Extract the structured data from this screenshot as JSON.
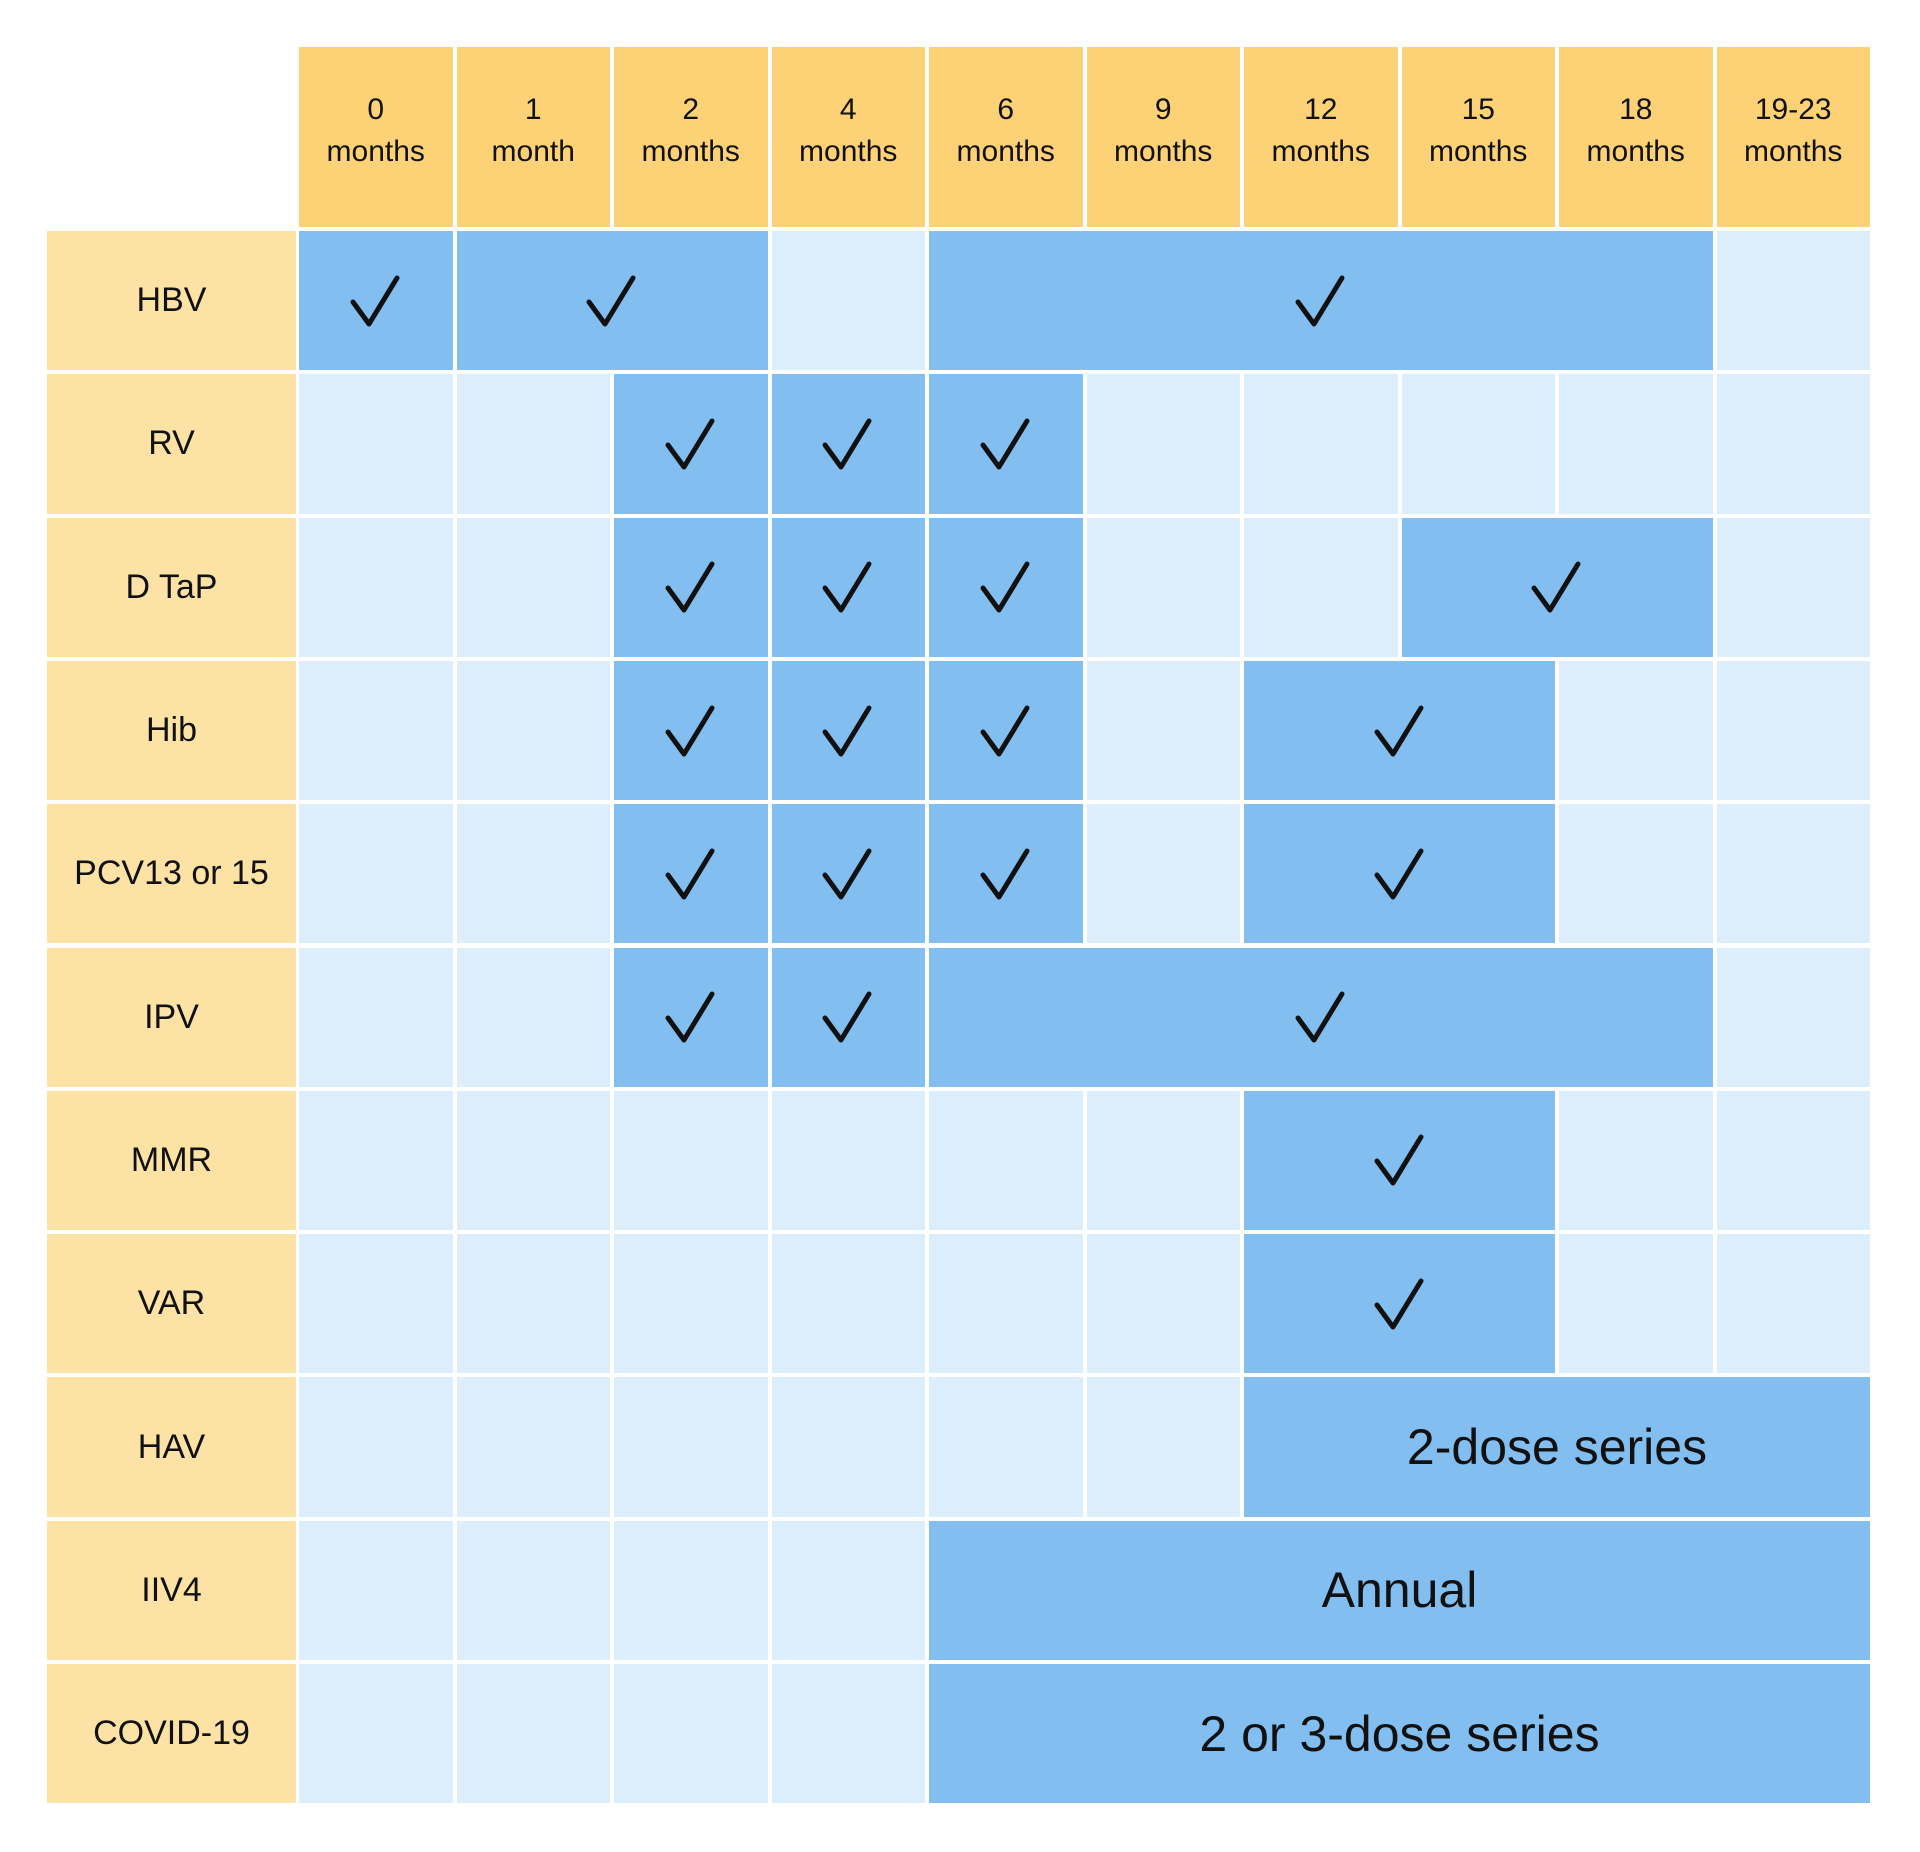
{
  "chart_data": {
    "type": "table",
    "title": "",
    "columns": [
      "0 months",
      "1 month",
      "2 months",
      "4 months",
      "6 months",
      "9 months",
      "12 months",
      "15 months",
      "18 months",
      "19-23 months"
    ],
    "rows": [
      {
        "vaccine": "HBV",
        "doses": [
          {
            "start": 0,
            "end": 0,
            "label": "✓"
          },
          {
            "start": 1,
            "end": 2,
            "label": "✓"
          },
          {
            "start": 4,
            "end": 8,
            "label": "✓"
          }
        ]
      },
      {
        "vaccine": "RV",
        "doses": [
          {
            "start": 2,
            "end": 2,
            "label": "✓"
          },
          {
            "start": 3,
            "end": 3,
            "label": "✓"
          },
          {
            "start": 4,
            "end": 4,
            "label": "✓"
          }
        ]
      },
      {
        "vaccine": "D TaP",
        "doses": [
          {
            "start": 2,
            "end": 2,
            "label": "✓"
          },
          {
            "start": 3,
            "end": 3,
            "label": "✓"
          },
          {
            "start": 4,
            "end": 4,
            "label": "✓"
          },
          {
            "start": 7,
            "end": 8,
            "label": "✓"
          }
        ]
      },
      {
        "vaccine": "Hib",
        "doses": [
          {
            "start": 2,
            "end": 2,
            "label": "✓"
          },
          {
            "start": 3,
            "end": 3,
            "label": "✓"
          },
          {
            "start": 4,
            "end": 4,
            "label": "✓"
          },
          {
            "start": 6,
            "end": 7,
            "label": "✓"
          }
        ]
      },
      {
        "vaccine": "PCV13 or 15",
        "doses": [
          {
            "start": 2,
            "end": 2,
            "label": "✓"
          },
          {
            "start": 3,
            "end": 3,
            "label": "✓"
          },
          {
            "start": 4,
            "end": 4,
            "label": "✓"
          },
          {
            "start": 6,
            "end": 7,
            "label": "✓"
          }
        ]
      },
      {
        "vaccine": "IPV",
        "doses": [
          {
            "start": 2,
            "end": 2,
            "label": "✓"
          },
          {
            "start": 3,
            "end": 3,
            "label": "✓"
          },
          {
            "start": 4,
            "end": 8,
            "label": "✓"
          }
        ]
      },
      {
        "vaccine": "MMR",
        "doses": [
          {
            "start": 6,
            "end": 7,
            "label": "✓"
          }
        ]
      },
      {
        "vaccine": "VAR",
        "doses": [
          {
            "start": 6,
            "end": 7,
            "label": "✓"
          }
        ]
      },
      {
        "vaccine": "HAV",
        "doses": [
          {
            "start": 6,
            "end": 9,
            "label": "2-dose series"
          }
        ]
      },
      {
        "vaccine": "IIV4",
        "doses": [
          {
            "start": 4,
            "end": 9,
            "label": "Annual"
          }
        ]
      },
      {
        "vaccine": "COVID-19",
        "doses": [
          {
            "start": 4,
            "end": 9,
            "label": "2 or 3-dose series"
          }
        ]
      }
    ],
    "colors": {
      "header": "#fdd276",
      "row_label": "#fde2a6",
      "empty": "#dcedfc",
      "dose": "#82bff0"
    }
  },
  "header": {
    "columns": [
      {
        "num": "0",
        "unit": "months"
      },
      {
        "num": "1",
        "unit": "month"
      },
      {
        "num": "2",
        "unit": "months"
      },
      {
        "num": "4",
        "unit": "months"
      },
      {
        "num": "6",
        "unit": "months"
      },
      {
        "num": "9",
        "unit": "months"
      },
      {
        "num": "12",
        "unit": "months"
      },
      {
        "num": "15",
        "unit": "months"
      },
      {
        "num": "18",
        "unit": "months"
      },
      {
        "num": "19-23",
        "unit": "months"
      }
    ]
  }
}
